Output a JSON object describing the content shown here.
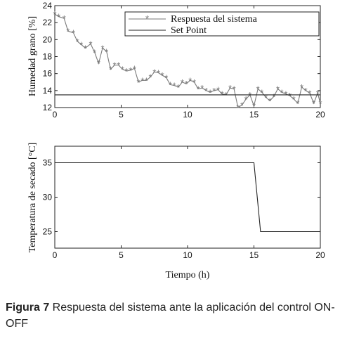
{
  "chart_data": [
    {
      "type": "line",
      "ylabel": "Humedad grano [%]",
      "xlim": [
        0,
        20
      ],
      "ylim": [
        12,
        24
      ],
      "xticks": [
        0,
        5,
        10,
        15,
        20
      ],
      "yticks": [
        12,
        14,
        16,
        18,
        20,
        22,
        24
      ],
      "legend": {
        "placement": "top-right"
      },
      "series": [
        {
          "name": "Respuesta del sistema",
          "marker": "asterisk",
          "color": "#7a7a7a",
          "x": [
            0,
            0.3,
            0.7,
            1.0,
            1.4,
            1.7,
            2.0,
            2.3,
            2.7,
            3.0,
            3.3,
            3.6,
            3.9,
            4.2,
            4.5,
            4.8,
            5.1,
            5.4,
            5.7,
            6.0,
            6.3,
            6.6,
            6.9,
            7.2,
            7.5,
            7.8,
            8.1,
            8.4,
            8.7,
            9.0,
            9.3,
            9.6,
            9.9,
            10.2,
            10.5,
            10.8,
            11.1,
            11.4,
            11.7,
            12.0,
            12.3,
            12.6,
            12.9,
            13.2,
            13.5,
            13.8,
            14.1,
            14.4,
            14.7,
            15.0,
            15.3,
            15.6,
            15.9,
            16.2,
            16.5,
            16.8,
            17.1,
            17.4,
            17.7,
            18.0,
            18.3,
            18.6,
            18.9,
            19.2,
            19.5,
            19.8,
            20.0
          ],
          "y": [
            23.0,
            22.7,
            22.5,
            21.0,
            20.8,
            19.8,
            19.4,
            19.0,
            19.5,
            18.5,
            17.2,
            19.0,
            18.6,
            16.5,
            17.0,
            17.0,
            16.5,
            16.3,
            16.4,
            16.6,
            15.0,
            15.2,
            15.2,
            15.6,
            16.2,
            16.1,
            15.8,
            15.5,
            14.7,
            14.6,
            14.4,
            15.0,
            14.8,
            15.2,
            15.0,
            14.2,
            14.3,
            14.0,
            13.8,
            14.0,
            14.1,
            13.6,
            13.5,
            14.3,
            14.2,
            12.0,
            12.3,
            13.0,
            13.5,
            12.2,
            14.2,
            13.8,
            13.2,
            12.8,
            13.3,
            14.2,
            13.8,
            13.6,
            13.4,
            13.0,
            12.5,
            14.4,
            14.0,
            13.7,
            12.5,
            13.7,
            12.5
          ]
        },
        {
          "name": "Set Point",
          "color": "#222222",
          "x": [
            0,
            20
          ],
          "y": [
            13.5,
            13.5
          ]
        }
      ]
    },
    {
      "type": "line",
      "xlabel": "Tiempo (h)",
      "ylabel": "Temperatura de secado [°C]",
      "xlim": [
        0,
        20
      ],
      "ylim": [
        22.6,
        37.4
      ],
      "xticks": [
        0,
        5,
        10,
        15,
        20
      ],
      "yticks": [
        25,
        30,
        35
      ],
      "series": [
        {
          "color": "#222222",
          "x": [
            0,
            15.0,
            15.5,
            20
          ],
          "y": [
            35,
            35,
            25,
            25
          ]
        }
      ]
    }
  ],
  "caption": {
    "label": "Figura 7",
    "text": " Respuesta del sistema ante la aplicación del control ON-OFF"
  }
}
